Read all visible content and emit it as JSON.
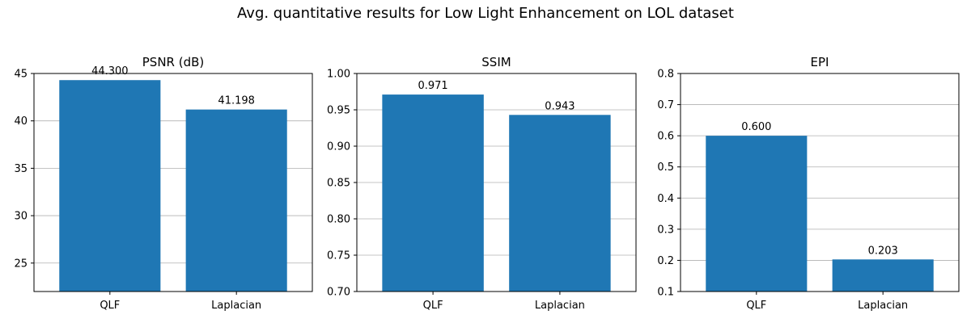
{
  "figure": {
    "title": "Avg. quantitative results for Low Light Enhancement on LOL dataset",
    "bar_color": "#1f77b4"
  },
  "chart_data": [
    {
      "type": "bar",
      "title": "PSNR (dB)",
      "xlabel": "",
      "ylabel": "",
      "categories": [
        "QLF",
        "Laplacian"
      ],
      "values": [
        44.3,
        41.198
      ],
      "value_labels": [
        "44.300",
        "41.198"
      ],
      "ylim": [
        22,
        45
      ],
      "yticks": [
        25,
        30,
        35,
        40,
        45
      ],
      "ytick_labels": [
        "25",
        "30",
        "35",
        "40",
        "45"
      ],
      "grid": "y"
    },
    {
      "type": "bar",
      "title": "SSIM",
      "xlabel": "",
      "ylabel": "",
      "categories": [
        "QLF",
        "Laplacian"
      ],
      "values": [
        0.971,
        0.943
      ],
      "value_labels": [
        "0.971",
        "0.943"
      ],
      "ylim": [
        0.7,
        1.0
      ],
      "yticks": [
        0.7,
        0.75,
        0.8,
        0.85,
        0.9,
        0.95,
        1.0
      ],
      "ytick_labels": [
        "0.70",
        "0.75",
        "0.80",
        "0.85",
        "0.90",
        "0.95",
        "1.00"
      ],
      "grid": "y"
    },
    {
      "type": "bar",
      "title": "EPI",
      "xlabel": "",
      "ylabel": "",
      "categories": [
        "QLF",
        "Laplacian"
      ],
      "values": [
        0.6,
        0.203
      ],
      "value_labels": [
        "0.600",
        "0.203"
      ],
      "ylim": [
        0.1,
        0.8
      ],
      "yticks": [
        0.1,
        0.2,
        0.3,
        0.4,
        0.5,
        0.6,
        0.7,
        0.8
      ],
      "ytick_labels": [
        "0.1",
        "0.2",
        "0.3",
        "0.4",
        "0.5",
        "0.6",
        "0.7",
        "0.8"
      ],
      "grid": "y"
    }
  ]
}
